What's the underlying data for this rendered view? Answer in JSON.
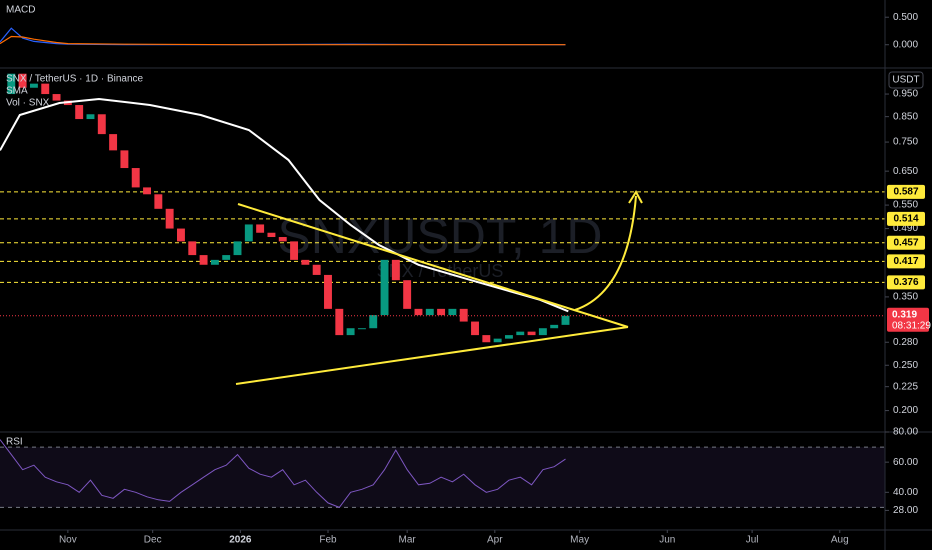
{
  "chart_data": [
    {
      "type": "line",
      "title": "MACD",
      "x": [
        -24,
        -20,
        -16,
        -12,
        -4,
        0,
        20,
        60,
        100,
        140,
        176
      ],
      "series": [
        {
          "color": "#2962ff",
          "values": [
            0.05,
            0.3,
            0.12,
            0.06,
            0.02,
            0.01,
            0.0,
            0.0,
            0.01,
            0.0,
            0.0
          ]
        },
        {
          "color": "#ff6d00",
          "values": [
            0.02,
            0.15,
            0.14,
            0.1,
            0.04,
            0.02,
            0.01,
            0.0,
            0.0,
            0.0,
            0.0
          ]
        }
      ],
      "xlim": [
        -24,
        289
      ],
      "ylim": [
        -0.35,
        0.74
      ],
      "yticks": [
        {
          "value": 0.5,
          "label": "0.500"
        },
        {
          "value": 0,
          "label": "0.000"
        }
      ]
    },
    {
      "type": "candlestick",
      "title": "SNX / TetherUS · 1D · Binance",
      "watermark": "SNXUSDT, 1D",
      "watermark_sub": "SNX / TetherUS",
      "x": [
        -24,
        -20,
        -16,
        -12,
        -8,
        -4,
        0,
        4,
        8,
        12,
        16,
        20,
        24,
        28,
        32,
        36,
        40,
        44,
        48,
        52,
        56,
        60,
        64,
        68,
        72,
        76,
        80,
        84,
        88,
        92,
        96,
        100,
        104,
        108,
        112,
        116,
        120,
        124,
        128,
        132,
        136,
        140,
        144,
        148,
        152,
        156,
        160,
        164,
        168,
        172,
        176
      ],
      "close": [
        0.95,
        1.05,
        0.98,
        1.0,
        0.95,
        0.92,
        0.9,
        0.84,
        0.86,
        0.78,
        0.72,
        0.66,
        0.6,
        0.58,
        0.54,
        0.49,
        0.46,
        0.43,
        0.41,
        0.42,
        0.43,
        0.46,
        0.5,
        0.48,
        0.47,
        0.46,
        0.42,
        0.41,
        0.39,
        0.33,
        0.29,
        0.3,
        0.3,
        0.32,
        0.42,
        0.38,
        0.33,
        0.32,
        0.33,
        0.32,
        0.33,
        0.31,
        0.29,
        0.28,
        0.285,
        0.29,
        0.295,
        0.29,
        0.3,
        0.305,
        0.319
      ],
      "up_color": "#089981",
      "down_color": "#f23645",
      "sma": {
        "title": "SMA",
        "color": "#ffffff",
        "x": [
          -24,
          -17,
          -3,
          11,
          29,
          47,
          64,
          78,
          89,
          100,
          110,
          124,
          142,
          167,
          177
        ],
        "values": [
          0.72,
          0.857,
          0.909,
          0.927,
          0.9,
          0.857,
          0.796,
          0.687,
          0.564,
          0.499,
          0.452,
          0.41,
          0.381,
          0.345,
          0.326
        ]
      },
      "volume_title": "Vol · SNX",
      "currency": "USDT",
      "log_scale": true,
      "xlim": [
        -24,
        289
      ],
      "ylim": [
        0.18,
        1.08
      ],
      "yticks": [
        {
          "value": 0.95,
          "label": "0.950"
        },
        {
          "value": 0.85,
          "label": "0.850"
        },
        {
          "value": 0.75,
          "label": "0.750"
        },
        {
          "value": 0.65,
          "label": "0.650"
        },
        {
          "value": 0.55,
          "label": "0.550"
        },
        {
          "value": 0.49,
          "label": "0.490"
        },
        {
          "value": 0.35,
          "label": "0.350"
        },
        {
          "value": 0.28,
          "label": "0.280"
        },
        {
          "value": 0.25,
          "label": "0.250"
        },
        0.225,
        {
          "value": 0.2,
          "label": "0.200"
        }
      ],
      "levels": [
        0.587,
        0.514,
        0.457,
        0.417,
        0.376
      ],
      "level_color": "#ffeb3b",
      "last": {
        "value": 0.319,
        "countdown": "08:31:29",
        "color": "#f23645"
      }
    },
    {
      "type": "line",
      "title": "RSI",
      "color": "#7e57c2",
      "x": [
        -24,
        -20,
        -16,
        -12,
        -8,
        -4,
        0,
        4,
        8,
        12,
        16,
        20,
        24,
        28,
        32,
        36,
        40,
        44,
        48,
        52,
        56,
        60,
        64,
        68,
        72,
        76,
        80,
        84,
        88,
        92,
        96,
        100,
        104,
        108,
        112,
        116,
        120,
        124,
        128,
        132,
        136,
        140,
        144,
        148,
        152,
        156,
        160,
        164,
        168,
        172,
        176
      ],
      "values": [
        75,
        65,
        55,
        58,
        50,
        47,
        45,
        40,
        48,
        38,
        36,
        42,
        40,
        37,
        35,
        34,
        40,
        45,
        50,
        55,
        58,
        65,
        56,
        52,
        50,
        55,
        45,
        48,
        40,
        33,
        30,
        40,
        42,
        45,
        55,
        68,
        55,
        45,
        46,
        50,
        47,
        52,
        45,
        40,
        42,
        48,
        50,
        45,
        55,
        57,
        62
      ],
      "bands": [
        30,
        70
      ],
      "xlim": [
        -24,
        289
      ],
      "ylim": [
        15,
        80
      ],
      "yticks": [
        {
          "value": 80,
          "label": "80.00"
        },
        {
          "value": 60,
          "label": "60.00"
        },
        {
          "value": 40,
          "label": "40.00"
        },
        {
          "value": 28,
          "label": "28.00"
        }
      ],
      "xticks": [
        {
          "value": 0,
          "label": "Nov"
        },
        {
          "value": 30,
          "label": "Dec"
        },
        {
          "value": 61,
          "label": "2026"
        },
        {
          "value": 92,
          "label": "Feb"
        },
        {
          "value": 120,
          "label": "Mar"
        },
        {
          "value": 151,
          "label": "Apr"
        },
        {
          "value": 181,
          "label": "May"
        },
        {
          "value": 212,
          "label": "Jun"
        },
        {
          "value": 242,
          "label": "Jul"
        },
        {
          "value": 273,
          "label": "Aug"
        }
      ]
    }
  ]
}
